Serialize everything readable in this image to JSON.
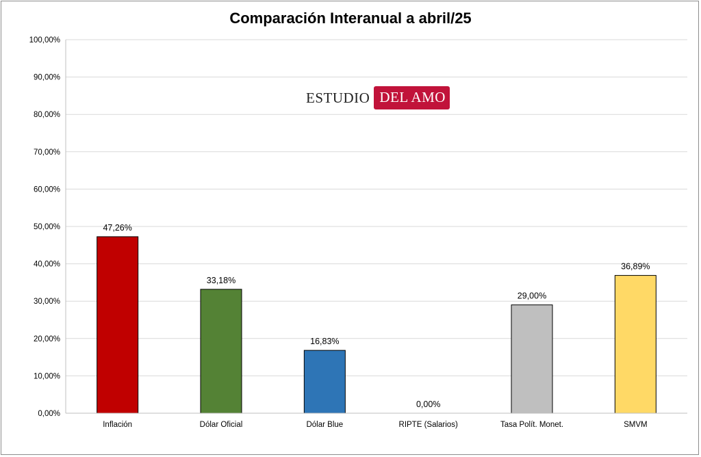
{
  "brand": {
    "left_text": "ESTUDIO",
    "right_text": "DEL AMO",
    "accent_color": "#c1133a"
  },
  "chart_data": {
    "type": "bar",
    "title": "Comparación Interanual a abril/25",
    "xlabel": "",
    "ylabel": "",
    "ylim": [
      0,
      100
    ],
    "grid": true,
    "legend": "none",
    "y_ticks": [
      0,
      10,
      20,
      30,
      40,
      50,
      60,
      70,
      80,
      90,
      100
    ],
    "y_tick_labels": [
      "0,00%",
      "10,00%",
      "20,00%",
      "30,00%",
      "40,00%",
      "50,00%",
      "60,00%",
      "70,00%",
      "80,00%",
      "90,00%",
      "100,00%"
    ],
    "categories": [
      "Inflación",
      "Dólar Oficial",
      "Dólar Blue",
      "RIPTE (Salarios)",
      "Tasa Polít. Monet.",
      "SMVM"
    ],
    "values": [
      47.26,
      33.18,
      16.83,
      0.0,
      29.0,
      36.89
    ],
    "data_labels": [
      "47,26%",
      "33,18%",
      "16,83%",
      "0,00%",
      "29,00%",
      "36,89%"
    ],
    "colors": [
      "#c00000",
      "#548235",
      "#2e75b6",
      "#a5a5a5",
      "#bfbfbf",
      "#ffd966"
    ]
  }
}
